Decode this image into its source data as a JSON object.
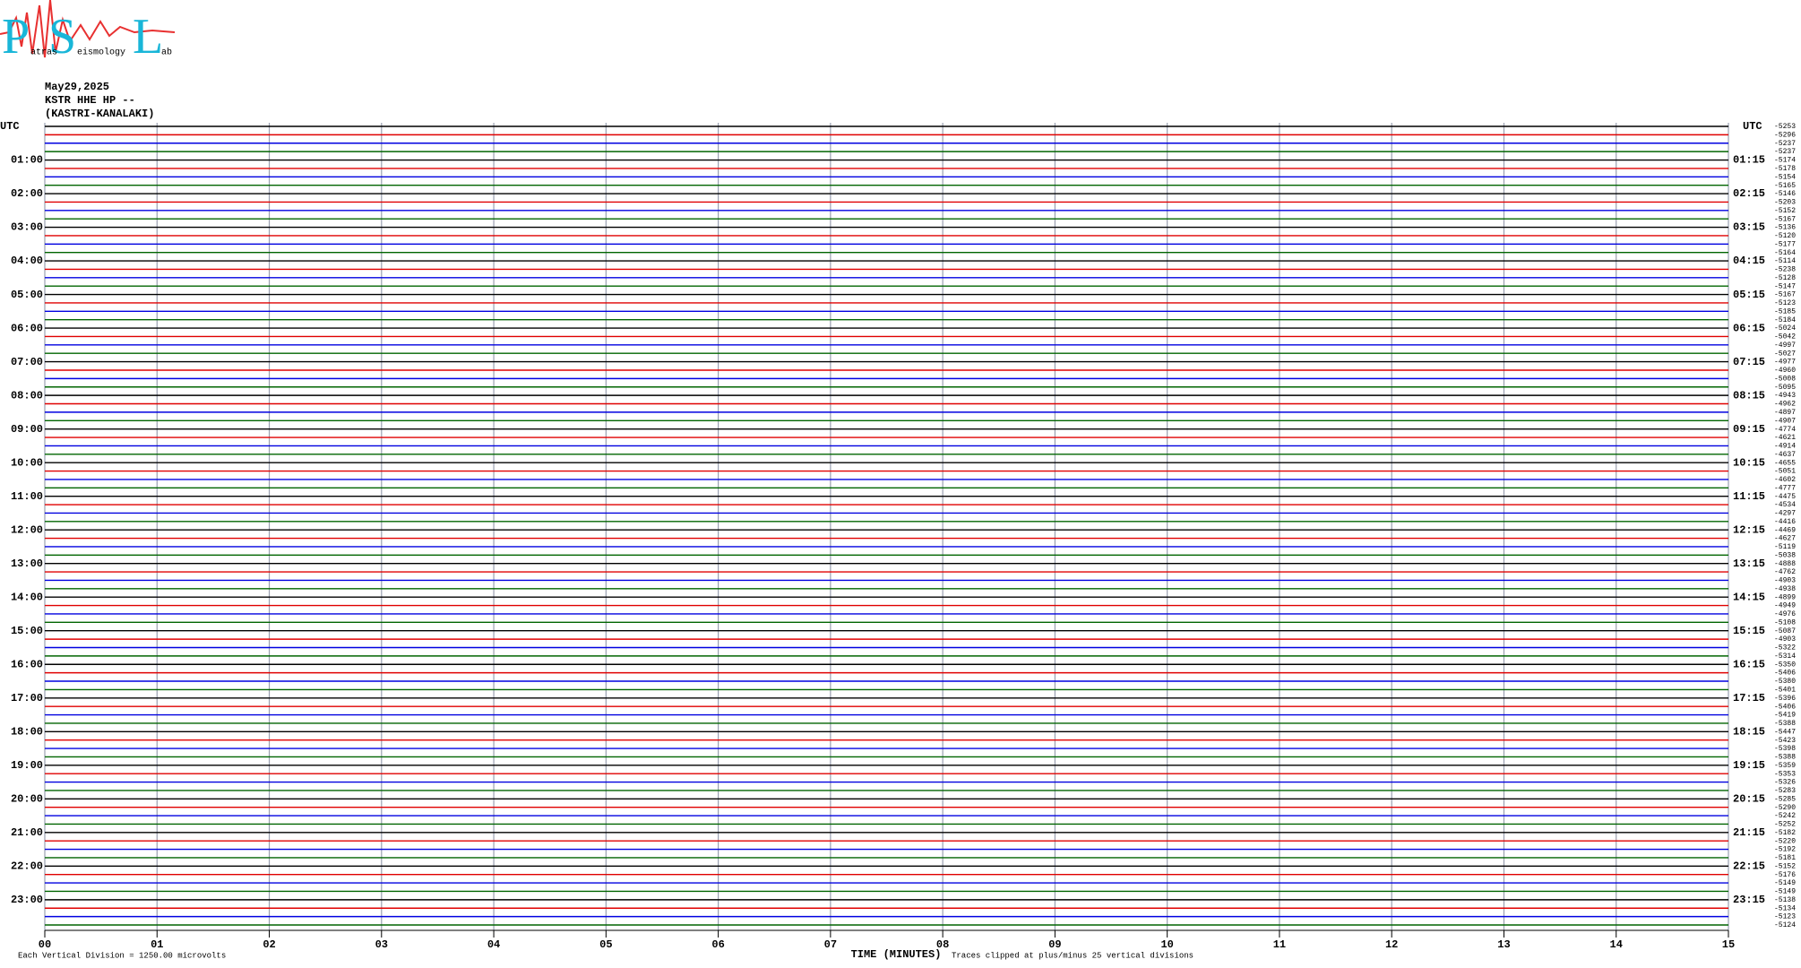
{
  "logo": {
    "letters": [
      "P",
      "S",
      "L"
    ],
    "words": [
      "atras",
      "eismology",
      "ab"
    ]
  },
  "chart_data": {
    "type": "helicorder",
    "date": "May29,2025",
    "station": "KSTR HHE HP --",
    "site": "(KASTRI-KANALAKI)",
    "left_labels": [
      "UTC",
      "01:00",
      "02:00",
      "03:00",
      "04:00",
      "05:00",
      "06:00",
      "07:00",
      "08:00",
      "09:00",
      "10:00",
      "11:00",
      "12:00",
      "13:00",
      "14:00",
      "15:00",
      "16:00",
      "17:00",
      "18:00",
      "19:00",
      "20:00",
      "21:00",
      "22:00",
      "23:00"
    ],
    "right_labels": [
      "UTC",
      "01:15",
      "02:15",
      "03:15",
      "04:15",
      "05:15",
      "06:15",
      "07:15",
      "08:15",
      "09:15",
      "10:15",
      "11:15",
      "12:15",
      "13:15",
      "14:15",
      "15:15",
      "16:15",
      "17:15",
      "18:15",
      "19:15",
      "20:15",
      "21:15",
      "22:15",
      "23:15"
    ],
    "offsets": [
      -5253,
      -5296,
      -5237,
      -5237,
      -5174,
      -5178,
      -5154,
      -5165,
      -5146,
      -5203,
      -5152,
      -5167,
      -5136,
      -5120,
      -5177,
      -5164,
      -5114,
      -5238,
      -5128,
      -5147,
      -5167,
      -5123,
      -5185,
      -5184,
      -5024,
      -5042,
      -4997,
      -5027,
      -4977,
      -4960,
      -5008,
      -5095,
      -4943,
      -4962,
      -4897,
      -4907,
      -4774,
      -4621,
      -4914,
      -4637,
      -4655,
      -5051,
      -4602,
      -4777,
      -4475,
      -4534,
      -4297,
      -4416,
      -4469,
      -4627,
      -5119,
      -5038,
      -4888,
      -4762,
      -4903,
      -4938,
      -4899,
      -4949,
      -4976,
      -5108,
      -5087,
      -4903,
      -5322,
      -5314,
      -5350,
      -5406,
      -5380,
      -5401,
      -5396,
      -5406,
      -5419,
      -5388,
      -5447,
      -5423,
      -5398,
      -5388,
      -5359,
      -5353,
      -5326,
      -5283,
      -5285,
      -5290,
      -5242,
      -5252,
      -5182,
      -5220,
      -5192,
      -5181,
      -5152,
      -5176,
      -5149,
      -5149,
      -5138,
      -5134,
      -5123,
      -5124
    ],
    "colors": [
      "#000000",
      "#e00000",
      "#0000e0",
      "#006400"
    ],
    "xlim": [
      0,
      15
    ],
    "xticks": [
      {
        "value": 0,
        "label": "00"
      },
      {
        "value": 1,
        "label": "01"
      },
      {
        "value": 2,
        "label": "02"
      },
      {
        "value": 3,
        "label": "03"
      },
      {
        "value": 4,
        "label": "04"
      },
      {
        "value": 5,
        "label": "05"
      },
      {
        "value": 6,
        "label": "06"
      },
      {
        "value": 7,
        "label": "07"
      },
      {
        "value": 8,
        "label": "08"
      },
      {
        "value": 9,
        "label": "09"
      },
      10,
      11,
      12,
      13,
      14,
      15
    ],
    "grid": true,
    "xlabel": "TIME (MINUTES)",
    "scale_note": "Each Vertical Division = 1250.00 microvolts",
    "clip_note": "Traces clipped at plus/minus 25 vertical divisions"
  }
}
